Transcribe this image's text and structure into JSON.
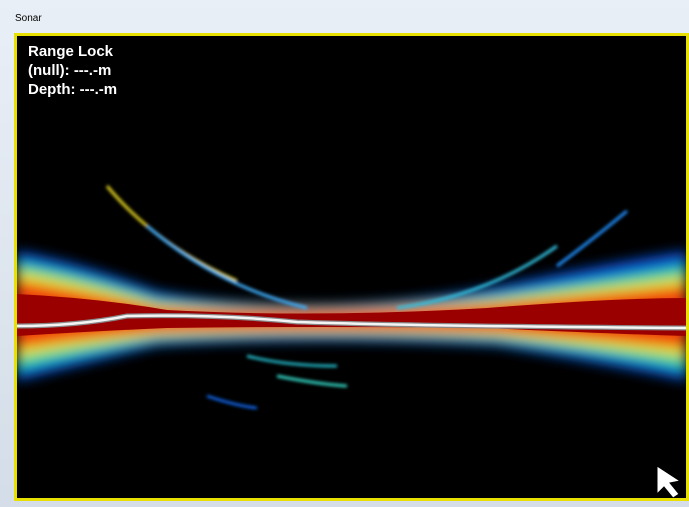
{
  "window": {
    "title": "Sonar"
  },
  "overlay": {
    "lines": [
      "Range Lock",
      "(null): ---.-m",
      "Depth: ---.-m"
    ]
  }
}
